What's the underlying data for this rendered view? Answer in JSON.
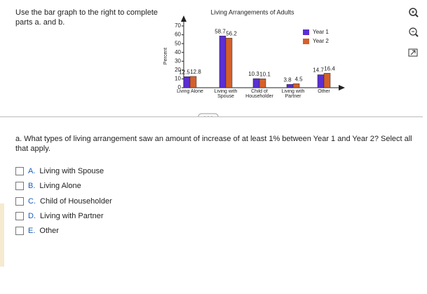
{
  "instructions": "Use the bar graph to the right to complete parts a. and b.",
  "chart_data": {
    "type": "bar",
    "title": "Living Arrangements of Adults",
    "y_label": "Percent",
    "categories": [
      "Living Alone",
      "Living with Spouse",
      "Child of Householder",
      "Living with Partner",
      "Other"
    ],
    "series": [
      {
        "name": "Year 1",
        "color": "#5b2fd3",
        "values": [
          12.5,
          58.7,
          10.3,
          3.8,
          14.7
        ]
      },
      {
        "name": "Year 2",
        "color": "#d4602c",
        "values": [
          12.8,
          56.2,
          10.1,
          4.5,
          16.4
        ]
      }
    ],
    "ylim": [
      0,
      70
    ],
    "yticks": [
      0,
      10,
      20,
      30,
      40,
      50,
      60,
      70
    ],
    "legend": "top-right",
    "grid": false
  },
  "question": "a. What types of living arrangement saw an amount of increase of at least 1% between Year 1 and Year 2? Select all that apply.",
  "options": [
    {
      "letter": "A.",
      "text": "Living with Spouse"
    },
    {
      "letter": "B.",
      "text": "Living Alone"
    },
    {
      "letter": "C.",
      "text": "Child of Householder"
    },
    {
      "letter": "D.",
      "text": "Living with Partner"
    },
    {
      "letter": "E.",
      "text": "Other"
    }
  ]
}
